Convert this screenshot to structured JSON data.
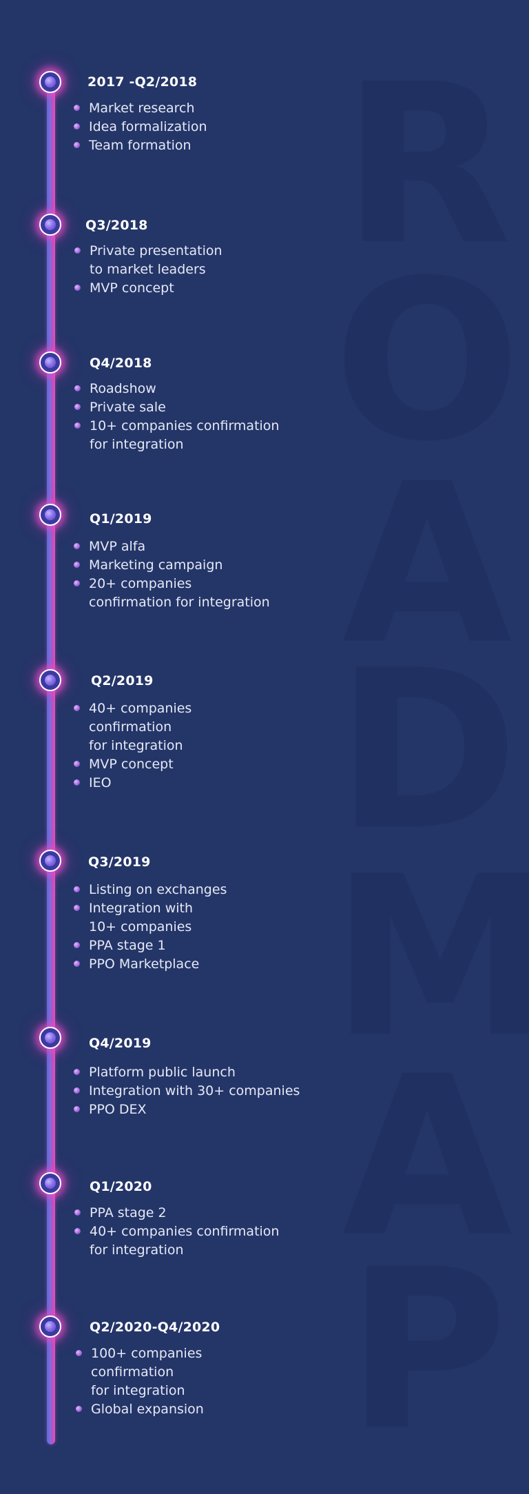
{
  "colors": {
    "background": "#243568",
    "watermark": "#203160",
    "accent_pink": "#e055b8",
    "accent_violet": "#7a6ee0",
    "text": "#e6e9f5"
  },
  "watermark_letters": [
    "R",
    "O",
    "A",
    "D",
    "M",
    "A",
    "P"
  ],
  "milestones": [
    {
      "period": "2017 -Q2/2018",
      "items": [
        "Market research",
        "Idea formalization",
        "Team formation"
      ]
    },
    {
      "period": "Q3/2018",
      "items": [
        "Private presentation\nto market leaders",
        "MVP concept"
      ]
    },
    {
      "period": "Q4/2018",
      "items": [
        "Roadshow",
        "Private sale",
        "10+ companies confirmation\nfor integration"
      ]
    },
    {
      "period": "Q1/2019",
      "items": [
        "MVP alfa",
        "Marketing campaign",
        "20+ companies\nconfirmation for integration"
      ]
    },
    {
      "period": "Q2/2019",
      "items": [
        "40+ companies\nconfirmation\nfor integration",
        "MVP concept",
        "IEO"
      ]
    },
    {
      "period": "Q3/2019",
      "items": [
        "Listing on exchanges",
        "Integration with\n10+ companies",
        "PPA stage 1",
        "PPO Marketplace"
      ]
    },
    {
      "period": "Q4/2019",
      "items": [
        "Platform public launch",
        "Integration with 30+ companies",
        "PPO DEX"
      ]
    },
    {
      "period": "Q1/2020",
      "items": [
        "PPA stage 2",
        "40+ companies confirmation\nfor integration"
      ]
    },
    {
      "period": "Q2/2020-Q4/2020",
      "items": [
        "100+ companies\nconfirmation\nfor integration",
        "Global expansion"
      ]
    }
  ]
}
